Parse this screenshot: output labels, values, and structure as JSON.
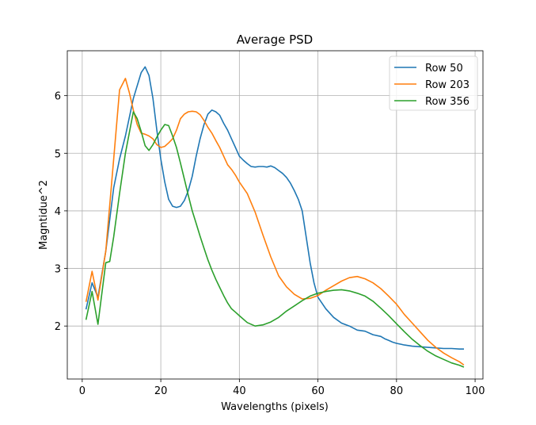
{
  "chart_data": {
    "type": "line",
    "title": "Average PSD",
    "xlabel": "Wavelengths (pixels)",
    "ylabel": "Magntidue^2",
    "xlim": [
      -3.8,
      102
    ],
    "ylim": [
      1.08,
      6.78
    ],
    "xticks": [
      0,
      20,
      40,
      60,
      80,
      100
    ],
    "yticks": [
      2,
      3,
      4,
      5,
      6
    ],
    "grid": true,
    "legend_position": "top-right",
    "series": [
      {
        "name": "Row 50",
        "color": "#1f77b4",
        "x": [
          1,
          2.5,
          4,
          6,
          8,
          9.5,
          11,
          13,
          15,
          16,
          17,
          18,
          19,
          20,
          21,
          22,
          23,
          24,
          25,
          26,
          27,
          28,
          29,
          30,
          31,
          32,
          33,
          34,
          35,
          36,
          37,
          38,
          39,
          40,
          41,
          42,
          43,
          44,
          45,
          46,
          47,
          48,
          49,
          50,
          51,
          52,
          53,
          54,
          55,
          56,
          57,
          58,
          59,
          60,
          62,
          64,
          66,
          68,
          70,
          72,
          74,
          76,
          77,
          78,
          79,
          80,
          82,
          84,
          86,
          88,
          90,
          92,
          94,
          96,
          97
        ],
        "values": [
          2.3,
          2.75,
          2.5,
          3.3,
          4.4,
          4.9,
          5.3,
          5.95,
          6.4,
          6.5,
          6.35,
          5.95,
          5.4,
          4.9,
          4.5,
          4.2,
          4.08,
          4.06,
          4.08,
          4.18,
          4.35,
          4.6,
          4.95,
          5.25,
          5.5,
          5.68,
          5.75,
          5.72,
          5.66,
          5.52,
          5.4,
          5.25,
          5.1,
          4.95,
          4.88,
          4.82,
          4.77,
          4.76,
          4.77,
          4.77,
          4.76,
          4.78,
          4.75,
          4.7,
          4.65,
          4.58,
          4.48,
          4.35,
          4.2,
          4.0,
          3.55,
          3.1,
          2.75,
          2.5,
          2.3,
          2.15,
          2.05,
          2.0,
          1.93,
          1.91,
          1.85,
          1.82,
          1.78,
          1.75,
          1.72,
          1.7,
          1.67,
          1.65,
          1.64,
          1.63,
          1.62,
          1.61,
          1.61,
          1.6,
          1.6
        ]
      },
      {
        "name": "Row 203",
        "color": "#ff7f0e",
        "x": [
          1,
          2.5,
          4,
          6,
          8,
          9.5,
          11,
          12,
          13,
          14,
          15,
          16,
          17,
          18,
          19,
          20,
          21,
          22,
          23,
          24,
          25,
          26,
          27,
          28,
          29,
          30,
          31,
          32,
          33,
          34,
          35,
          36,
          37,
          38,
          39,
          40,
          42,
          44,
          46,
          48,
          50,
          52,
          54,
          56,
          58,
          60,
          62,
          64,
          66,
          68,
          70,
          72,
          74,
          76,
          78,
          80,
          82,
          84,
          86,
          88,
          90,
          92,
          94,
          96,
          97
        ],
        "values": [
          2.43,
          2.95,
          2.45,
          3.3,
          4.9,
          6.1,
          6.3,
          6.05,
          5.75,
          5.5,
          5.35,
          5.33,
          5.3,
          5.25,
          5.15,
          5.1,
          5.12,
          5.18,
          5.25,
          5.4,
          5.6,
          5.68,
          5.72,
          5.73,
          5.72,
          5.67,
          5.57,
          5.45,
          5.35,
          5.22,
          5.1,
          4.95,
          4.8,
          4.72,
          4.62,
          4.5,
          4.3,
          3.98,
          3.58,
          3.2,
          2.87,
          2.68,
          2.55,
          2.47,
          2.48,
          2.53,
          2.62,
          2.7,
          2.78,
          2.84,
          2.86,
          2.82,
          2.75,
          2.65,
          2.52,
          2.38,
          2.2,
          2.05,
          1.9,
          1.75,
          1.63,
          1.53,
          1.45,
          1.38,
          1.33
        ]
      },
      {
        "name": "Row 356",
        "color": "#2ca02c",
        "x": [
          1,
          2.5,
          4,
          6,
          7,
          8,
          9.5,
          11,
          13,
          14,
          15,
          16,
          17,
          18,
          19,
          20,
          21,
          22,
          23,
          24,
          25,
          26,
          27,
          28,
          29,
          30,
          31,
          32,
          33,
          34,
          35,
          36,
          37,
          38,
          39,
          40,
          42,
          44,
          46,
          48,
          50,
          52,
          54,
          56,
          58,
          60,
          62,
          64,
          66,
          68,
          70,
          72,
          74,
          76,
          78,
          80,
          82,
          84,
          86,
          88,
          90,
          92,
          94,
          96,
          97
        ],
        "values": [
          2.12,
          2.6,
          2.03,
          3.1,
          3.12,
          3.55,
          4.3,
          5.0,
          5.72,
          5.6,
          5.38,
          5.13,
          5.05,
          5.15,
          5.28,
          5.4,
          5.5,
          5.48,
          5.3,
          5.1,
          4.83,
          4.55,
          4.27,
          4.0,
          3.78,
          3.56,
          3.35,
          3.15,
          2.97,
          2.81,
          2.67,
          2.53,
          2.4,
          2.3,
          2.24,
          2.18,
          2.06,
          2.0,
          2.02,
          2.07,
          2.15,
          2.26,
          2.35,
          2.44,
          2.52,
          2.57,
          2.6,
          2.62,
          2.63,
          2.61,
          2.57,
          2.52,
          2.43,
          2.31,
          2.18,
          2.04,
          1.9,
          1.77,
          1.66,
          1.56,
          1.48,
          1.42,
          1.36,
          1.32,
          1.29
        ]
      }
    ]
  }
}
